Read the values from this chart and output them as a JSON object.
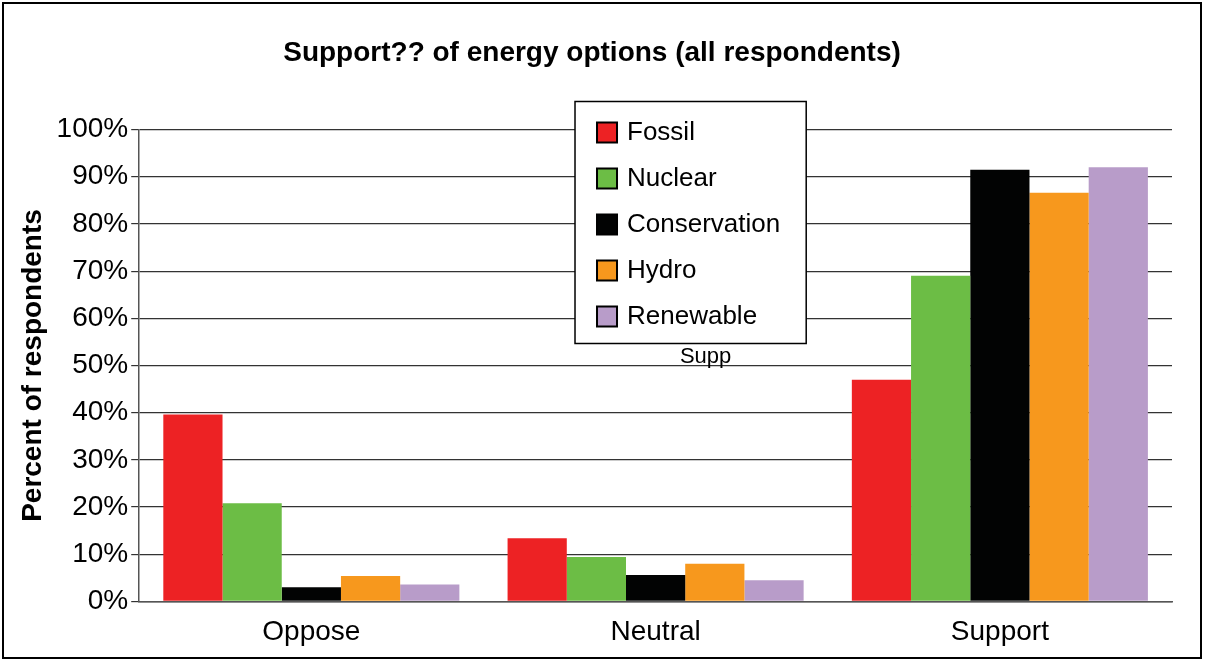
{
  "chart_data": {
    "type": "bar",
    "title": "Support?? of energy options (all respondents)",
    "ylabel": "Percent of respondents",
    "categories": [
      "Oppose",
      "Neutral",
      "Support"
    ],
    "series": [
      {
        "name": "Fossil",
        "color": "#ed2224",
        "values": [
          39.6,
          13.4,
          47
        ]
      },
      {
        "name": "Nuclear",
        "color": "#6cbd45",
        "values": [
          20.8,
          9.4,
          69
        ]
      },
      {
        "name": "Conservation",
        "color": "#020303",
        "values": [
          3,
          5.6,
          91.5
        ]
      },
      {
        "name": "Hydro",
        "color": "#f7981d",
        "values": [
          5.4,
          8,
          86.6
        ]
      },
      {
        "name": "Renewable",
        "color": "#b89cc9",
        "values": [
          3.6,
          4.5,
          92
        ]
      }
    ],
    "ylim": [
      0,
      100
    ],
    "yticks": [
      {
        "value": 0,
        "label": "0%"
      },
      {
        "value": 10,
        "label": "10%"
      },
      {
        "value": 20,
        "label": "20%"
      },
      {
        "value": 30,
        "label": "30%"
      },
      {
        "value": 40,
        "label": "40%"
      },
      {
        "value": 50,
        "label": "50%"
      },
      {
        "value": 60,
        "label": "60%"
      },
      {
        "value": 70,
        "label": "70%"
      },
      {
        "value": 80,
        "label": "80%"
      },
      {
        "value": 90,
        "label": "90%"
      },
      {
        "value": 100,
        "label": "100%"
      }
    ],
    "grid": "y",
    "legend": "top",
    "annotations": [
      "Supp"
    ]
  }
}
